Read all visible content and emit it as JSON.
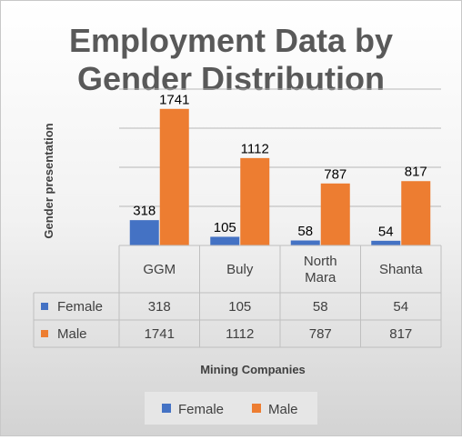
{
  "chart_data": {
    "type": "bar",
    "title_lines": [
      "Employment Data by",
      "Gender Distribution"
    ],
    "xlabel": "Mining Companies",
    "ylabel": "Gender presentation",
    "categories": [
      [
        "GGM"
      ],
      [
        "Buly"
      ],
      [
        "North",
        "Mara"
      ],
      [
        "Shanta"
      ]
    ],
    "series": [
      {
        "name": "Female",
        "values": [
          318,
          105,
          58,
          54
        ],
        "color": "#4472C4"
      },
      {
        "name": "Male",
        "values": [
          1741,
          1112,
          787,
          817
        ],
        "color": "#ED7D31"
      }
    ],
    "data_table": true,
    "legend_position": "bottom",
    "grid": true
  }
}
